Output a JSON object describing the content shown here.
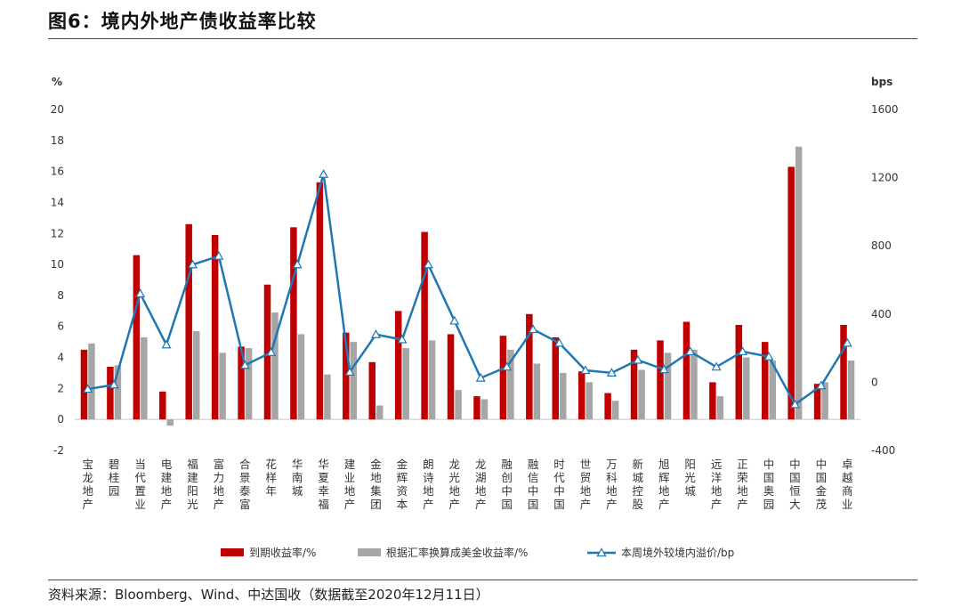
{
  "figure": {
    "title": "图6：境内外地产债收益率比较",
    "source": "资料来源：Bloomberg、Wind、中达国收（数据截至2020年12月11日）"
  },
  "chart_data": {
    "type": "bar+line",
    "left_axis": {
      "unit": "%",
      "min": -2,
      "max": 20,
      "ticks": [
        -2,
        0,
        2,
        4,
        6,
        8,
        10,
        12,
        14,
        16,
        18,
        20
      ]
    },
    "right_axis": {
      "unit": "bps",
      "min": -400,
      "max": 1600,
      "ticks": [
        -400,
        0,
        400,
        800,
        1200,
        1600
      ]
    },
    "categories": [
      "宝龙地产",
      "碧桂园",
      "当代置业",
      "电建地产",
      "福建阳光",
      "富力地产",
      "合景泰富",
      "花样年",
      "华南城",
      "华夏幸福",
      "建业地产",
      "金地集团",
      "金辉资本",
      "朗诗地产",
      "龙光地产",
      "龙湖地产",
      "融创中国",
      "融信中国",
      "时代中国",
      "世贸地产",
      "万科地产",
      "新城控股",
      "旭辉地产",
      "阳光城",
      "远洋地产",
      "正荣地产",
      "中国奥园",
      "中国恒大",
      "中国金茂",
      "卓越商业"
    ],
    "series": [
      {
        "name": "到期收益率/%",
        "kind": "bar",
        "axis": "left",
        "color": "#c00000",
        "values": [
          4.5,
          3.4,
          10.6,
          1.8,
          12.6,
          11.9,
          4.7,
          8.7,
          12.4,
          15.3,
          5.6,
          3.7,
          7.0,
          12.1,
          5.5,
          1.5,
          5.4,
          6.8,
          5.3,
          3.1,
          1.7,
          4.5,
          5.1,
          6.3,
          2.4,
          6.1,
          5.0,
          16.3,
          2.3,
          6.1
        ]
      },
      {
        "name": "根据汇率换算成美金收益率/%",
        "kind": "bar",
        "axis": "left",
        "color": "#a6a6a6",
        "values": [
          4.9,
          3.5,
          5.3,
          -0.4,
          5.7,
          4.3,
          4.6,
          6.9,
          5.5,
          2.9,
          5.0,
          0.9,
          4.6,
          5.1,
          1.9,
          1.3,
          4.5,
          3.6,
          3.0,
          2.4,
          1.2,
          3.2,
          4.3,
          4.5,
          1.5,
          4.0,
          3.8,
          17.6,
          2.4,
          3.8
        ]
      },
      {
        "name": "本周境外较境内溢价/bp",
        "kind": "line",
        "axis": "right",
        "color": "#1f77b4",
        "values": [
          -40,
          -15,
          520,
          220,
          690,
          740,
          100,
          175,
          690,
          1220,
          60,
          280,
          250,
          690,
          360,
          25,
          90,
          310,
          230,
          70,
          55,
          130,
          75,
          180,
          90,
          180,
          150,
          -130,
          -20,
          230
        ]
      }
    ]
  }
}
